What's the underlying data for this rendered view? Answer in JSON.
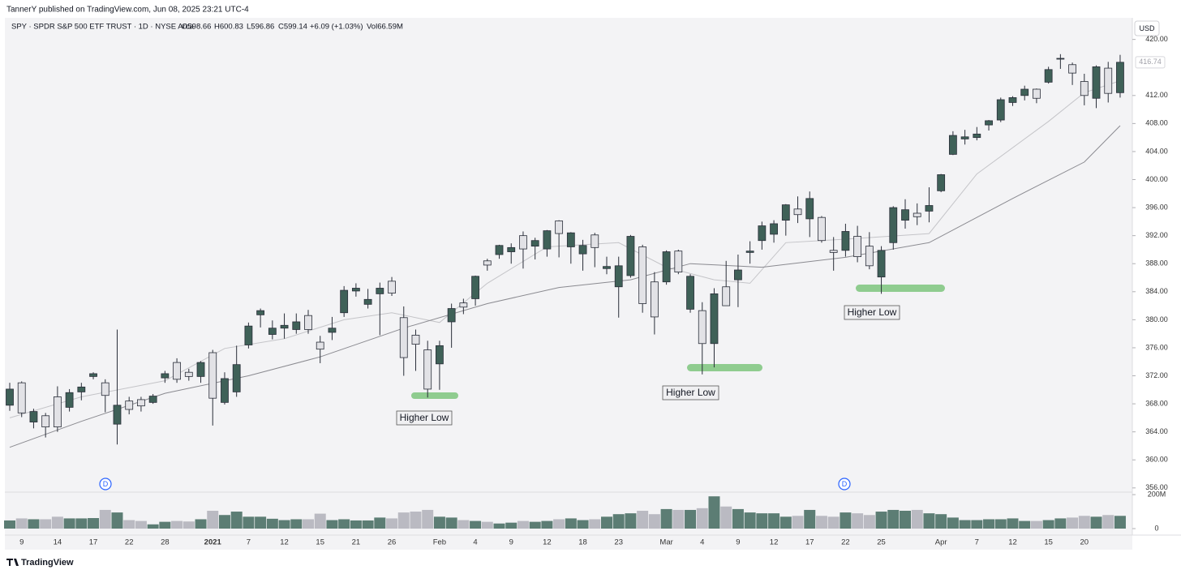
{
  "header": {
    "publisher": "TannerY published on TradingView.com, Jun 08, 2025 23:21 UTC-4",
    "symbol": "SPY · SPDR S&P 500 ETF TRUST · 1D · NYSE Arca",
    "open": "O598.66",
    "high": "H600.83",
    "low": "L596.86",
    "close": "C599.14",
    "change": "+6.09 (+1.03%)",
    "volume": "Vol66.59M",
    "currency": "USD"
  },
  "footer": "TradingView",
  "chart_data": {
    "type": "candlestick",
    "categories": [
      null,
      "9",
      null,
      null,
      "14",
      null,
      null,
      "17",
      null,
      null,
      "22",
      null,
      null,
      "28",
      null,
      null,
      null,
      "2021",
      null,
      null,
      "7",
      null,
      null,
      "12",
      null,
      null,
      "15",
      null,
      null,
      "21",
      null,
      null,
      "26",
      null,
      null,
      null,
      "Feb",
      null,
      null,
      "4",
      null,
      null,
      "9",
      null,
      null,
      "12",
      null,
      null,
      "18",
      null,
      null,
      "23",
      null,
      null,
      null,
      "Mar",
      null,
      null,
      "4",
      null,
      null,
      "9",
      null,
      null,
      "12",
      null,
      null,
      "17",
      null,
      null,
      "22",
      null,
      null,
      "25",
      null,
      null,
      null,
      null,
      "Apr",
      null,
      null,
      "7",
      null,
      null,
      "12",
      null,
      null,
      "15",
      null,
      null,
      "20",
      null,
      null,
      null
    ],
    "open": [
      367.8,
      371,
      365.4,
      366.3,
      369,
      367.5,
      369.7,
      371.9,
      371,
      365.1,
      368.4,
      368.6,
      368.2,
      371.7,
      373.9,
      372.5,
      371.9,
      375.3,
      368.2,
      369.7,
      376.4,
      380.7,
      377.9,
      378.8,
      378.6,
      380.6,
      376.8,
      378.2,
      381,
      384.1,
      382.2,
      383.7,
      385.5,
      380.3,
      377.8,
      375.7,
      373.7,
      379.7,
      382.4,
      383,
      388.4,
      389.3,
      389.7,
      392,
      390.5,
      390.1,
      394.1,
      390.4,
      389.4,
      392.1,
      387.3,
      384.7,
      386.3,
      390.4,
      385.4,
      385.4,
      389.8,
      381.5,
      381.3,
      376.6,
      384.7,
      385.7,
      389.6,
      391.3,
      392.2,
      394.2,
      395.8,
      394.4,
      394.6,
      389.9,
      389.9,
      391.9,
      390.5,
      386.1,
      391,
      394.2,
      395.2,
      395.5,
      398.4,
      403.6,
      405.8,
      406,
      407.8,
      408.5,
      411,
      412,
      412.9,
      413.9,
      417.2,
      416.4,
      414,
      411.6,
      415.9,
      412.4
    ],
    "high": [
      371,
      371.2,
      367.3,
      366.7,
      370.5,
      370.1,
      371,
      372.5,
      371.5,
      378.6,
      369,
      369,
      369.4,
      372.7,
      374.5,
      373,
      374.1,
      375.7,
      372.5,
      376.3,
      379.6,
      381.6,
      379.9,
      380.9,
      380.9,
      381.4,
      377.7,
      380.4,
      384.8,
      385.2,
      384.4,
      385.3,
      386.1,
      381.9,
      378.6,
      377,
      377,
      382.3,
      383,
      386.3,
      388.7,
      390.7,
      390.9,
      392.6,
      391.7,
      392.8,
      394.2,
      392.5,
      391.4,
      392.4,
      389,
      389,
      392.1,
      390.7,
      386.8,
      389.9,
      390,
      386.5,
      382.5,
      384.5,
      388.4,
      389.3,
      391.2,
      394,
      394.2,
      396.5,
      397.6,
      398.3,
      394.8,
      391.8,
      393.7,
      393.4,
      392.5,
      390.5,
      396.2,
      397.2,
      396.6,
      398.9,
      400.8,
      406.9,
      407.1,
      407.5,
      408.5,
      411.7,
      411.9,
      413.4,
      413,
      416.1,
      417.9,
      416.7,
      415.1,
      416.3,
      416.8,
      417.8
    ],
    "low": [
      367,
      366.1,
      364.5,
      363.2,
      364,
      366.9,
      368.5,
      371.5,
      366.8,
      362.2,
      366.5,
      366.9,
      368,
      371,
      371,
      371.3,
      371,
      364.9,
      367.9,
      369,
      375.9,
      378.9,
      377.2,
      377.3,
      378,
      378,
      373.8,
      377.1,
      380.4,
      383.3,
      381.6,
      377.8,
      383.4,
      372,
      372.7,
      368.9,
      370,
      376,
      380.8,
      382,
      387,
      388.7,
      388,
      387.3,
      388.6,
      389,
      388.9,
      388,
      387,
      387.5,
      386.5,
      380.3,
      386,
      381,
      377.9,
      385,
      386.5,
      381,
      372.2,
      373.2,
      382,
      381.8,
      388,
      390,
      391,
      392,
      393.8,
      391.8,
      391,
      387,
      389,
      388.2,
      387.2,
      383.7,
      390,
      393,
      393.5,
      393.9,
      398.2,
      403.5,
      405,
      405.6,
      407,
      408.2,
      410.5,
      411.3,
      410.9,
      413.7,
      415.8,
      413.5,
      410.6,
      410.2,
      411,
      411.7
    ],
    "close": [
      370.1,
      366.7,
      366.9,
      364.7,
      364.7,
      369.6,
      370.4,
      372.3,
      369.2,
      367.8,
      367.2,
      367.7,
      369.1,
      372.3,
      371.5,
      371.9,
      373.9,
      368.8,
      371.6,
      373.6,
      379.1,
      381.3,
      378.8,
      379.2,
      379.7,
      378.6,
      375.8,
      378.8,
      384.2,
      384.5,
      382.9,
      384.5,
      383.8,
      374.6,
      376.5,
      370.1,
      376.3,
      381.6,
      381.8,
      386.2,
      387.8,
      390.6,
      390.3,
      390.1,
      391.3,
      392.7,
      392.3,
      392.4,
      390.6,
      390.3,
      387.6,
      387.7,
      391.9,
      382.3,
      380.4,
      389.7,
      386.8,
      386.2,
      376.6,
      383.7,
      382,
      387.1,
      389.8,
      393.4,
      393.7,
      396.4,
      395,
      397.3,
      391.3,
      389.6,
      392.6,
      389,
      387.7,
      389.9,
      396,
      395.7,
      394.7,
      396.3,
      400.7,
      406.3,
      406.1,
      406.5,
      408.4,
      411.4,
      411.7,
      412.9,
      411.6,
      415.7,
      417.3,
      415.2,
      412,
      416.1,
      412.3,
      416.74
    ],
    "volume": [
      48,
      60,
      55,
      55,
      70,
      60,
      60,
      62,
      110,
      95,
      50,
      45,
      25,
      40,
      45,
      42,
      55,
      105,
      80,
      100,
      70,
      70,
      58,
      50,
      55,
      55,
      88,
      50,
      55,
      48,
      48,
      65,
      60,
      95,
      100,
      110,
      70,
      65,
      50,
      45,
      40,
      30,
      35,
      45,
      40,
      45,
      55,
      60,
      50,
      55,
      70,
      85,
      90,
      105,
      85,
      115,
      110,
      110,
      120,
      190,
      130,
      115,
      95,
      90,
      90,
      70,
      75,
      110,
      75,
      70,
      95,
      90,
      80,
      100,
      110,
      105,
      110,
      90,
      85,
      65,
      50,
      50,
      55,
      55,
      60,
      45,
      45,
      50,
      60,
      65,
      75,
      70,
      80,
      75
    ],
    "up_color": "#3f6158",
    "down_color": "#e2e2e6",
    "outline_color": "#2a2e39",
    "volume_up_color": "#4b7066",
    "volume_down_color": "#b4b4bc",
    "ylim": [
      355.4,
      421.0
    ],
    "yticks": [
      {
        "value": 356,
        "label": "356.00"
      },
      {
        "value": 360,
        "label": "360.00"
      },
      {
        "value": 364,
        "label": "364.00"
      },
      {
        "value": 368,
        "label": "368.00"
      },
      {
        "value": 372,
        "label": "372.00"
      },
      {
        "value": 376,
        "label": "376.00"
      },
      {
        "value": 380,
        "label": "380.00"
      },
      {
        "value": 384,
        "label": "384.00"
      },
      {
        "value": 388,
        "label": "388.00"
      },
      {
        "value": 392,
        "label": "392.00"
      },
      {
        "value": 396,
        "label": "396.00"
      },
      {
        "value": 400,
        "label": "400.00"
      },
      {
        "value": 404,
        "label": "404.00"
      },
      {
        "value": 408,
        "label": "408.00"
      },
      {
        "value": 412,
        "label": "412.00"
      },
      {
        "value": 420,
        "label": "420.00"
      }
    ],
    "last_price": 416.74,
    "volume_ylim": [
      0,
      210
    ],
    "volume_yticks": [
      0,
      {
        "value": 200,
        "label": "200M"
      }
    ],
    "moving_averages": [
      {
        "color": "#c4c4c8",
        "x": [
          0,
          6,
          13,
          18,
          23,
          28,
          32,
          36,
          40,
          45,
          51,
          55,
          59,
          62,
          65,
          70,
          77,
          81,
          87,
          90,
          93
        ],
        "values": [
          366,
          369,
          371.3,
          375.9,
          377.3,
          380,
          381,
          379.6,
          385.2,
          390.4,
          391,
          387.5,
          385.7,
          385.2,
          391,
          391.5,
          392.3,
          400.8,
          408.3,
          412.4,
          414.1
        ]
      },
      {
        "color": "#8a8a90",
        "x": [
          0,
          6,
          13,
          20,
          26,
          33,
          40,
          46,
          52,
          57,
          63,
          70,
          77,
          84,
          90,
          93
        ],
        "values": [
          361.8,
          365.5,
          369.5,
          372,
          374.7,
          378.8,
          382.3,
          384.6,
          385.7,
          388,
          387.5,
          388.9,
          391,
          397.3,
          402.5,
          407.7
        ]
      }
    ],
    "annotations": [
      "Higher Low",
      "Higher Low",
      "Higher Low"
    ],
    "events": [
      "D",
      "D"
    ]
  }
}
